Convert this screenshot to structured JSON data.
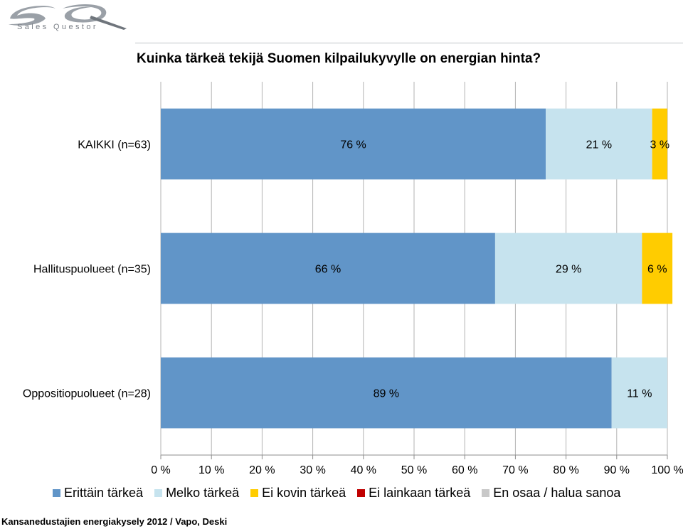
{
  "brand": {
    "logo_text": "Sales Questor"
  },
  "chart_data": {
    "type": "bar",
    "orientation": "horizontal",
    "stacked": true,
    "title": "Kuinka tärkeä tekijä Suomen kilpailukyvylle on energian hinta?",
    "categories": [
      "KAIKKI (n=63)",
      "Hallituspuolueet (n=35)",
      "Oppositiopuolueet (n=28)"
    ],
    "series": [
      {
        "name": "Erittäin tärkeä",
        "color": "#6195c8",
        "values": [
          76,
          66,
          89
        ],
        "labels": [
          "76 %",
          "66 %",
          "89 %"
        ]
      },
      {
        "name": "Melko tärkeä",
        "color": "#c6e3ee",
        "values": [
          21,
          29,
          11
        ],
        "labels": [
          "21 %",
          "29 %",
          "11 %"
        ]
      },
      {
        "name": "Ei kovin tärkeä",
        "color": "#ffcc00",
        "values": [
          3,
          6,
          0
        ],
        "labels": [
          "3 %",
          "6 %",
          ""
        ]
      },
      {
        "name": "Ei lainkaan tärkeä",
        "color": "#c00000",
        "values": [
          0,
          0,
          0
        ],
        "labels": [
          "",
          "",
          ""
        ]
      },
      {
        "name": "En osaa / halua sanoa",
        "color": "#c8c8c8",
        "values": [
          0,
          0,
          0
        ],
        "labels": [
          "",
          "",
          ""
        ]
      }
    ],
    "xlim": [
      0,
      100
    ],
    "x_ticks": [
      "0 %",
      "10 %",
      "20 %",
      "30 %",
      "40 %",
      "50 %",
      "60 %",
      "70 %",
      "80 %",
      "90 %",
      "100 %"
    ],
    "grid": true,
    "legend_position": "bottom"
  },
  "footer": {
    "source": "Kansanedustajien energiakysely 2012 / Vapo, Deski"
  }
}
